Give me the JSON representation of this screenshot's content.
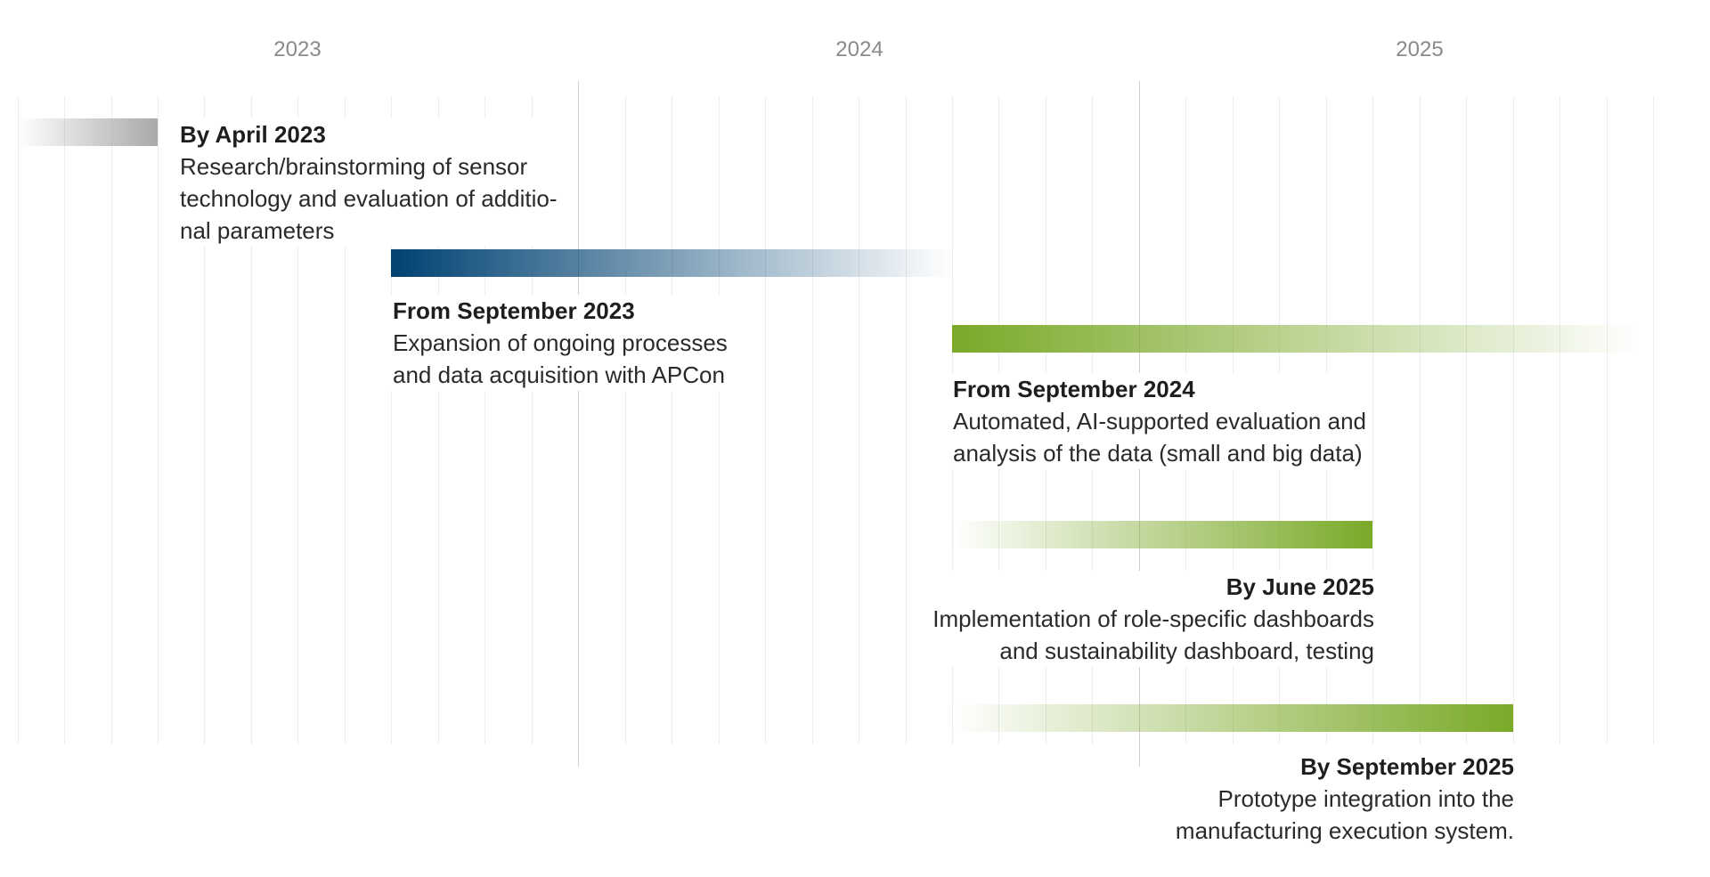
{
  "years": [
    "2023",
    "2024",
    "2025"
  ],
  "colors": {
    "gray": "#a9a9a9",
    "blue": "#004272",
    "green": "#7aa928",
    "grid": "#ececec",
    "major": "#cfcfcf"
  },
  "chart_data": {
    "type": "timeline",
    "start": "2023-01",
    "months_shown": 36,
    "milestones": [
      {
        "title": "By April 2023",
        "lines": [
          "Research/brainstorming of sensor",
          "technology and evaluation of additio-",
          "nal parameters"
        ],
        "bar_start_month": 0,
        "bar_end_month": 3,
        "color": "gray",
        "fade": "left"
      },
      {
        "title": "From September 2023",
        "lines": [
          "Expansion of ongoing processes",
          "and data acquisition with APCon"
        ],
        "bar_start_month": 8,
        "bar_end_month": 20,
        "color": "blue",
        "fade": "right"
      },
      {
        "title": "From September 2024",
        "lines": [
          "Automated, AI-supported evaluation and",
          "analysis of the data (small and big data)"
        ],
        "bar_start_month": 20,
        "bar_end_month": 34.7,
        "color": "green",
        "fade": "right"
      },
      {
        "title": "By June 2025",
        "lines": [
          "Implementation of role-specific dashboards",
          "and sustainability dashboard, testing"
        ],
        "bar_start_month": 20,
        "bar_end_month": 29,
        "color": "green",
        "fade": "left"
      },
      {
        "title": "By September 2025",
        "lines": [
          "Prototype integration into the",
          "manufacturing execution system."
        ],
        "bar_start_month": 20,
        "bar_end_month": 32,
        "color": "green",
        "fade": "left"
      }
    ]
  }
}
